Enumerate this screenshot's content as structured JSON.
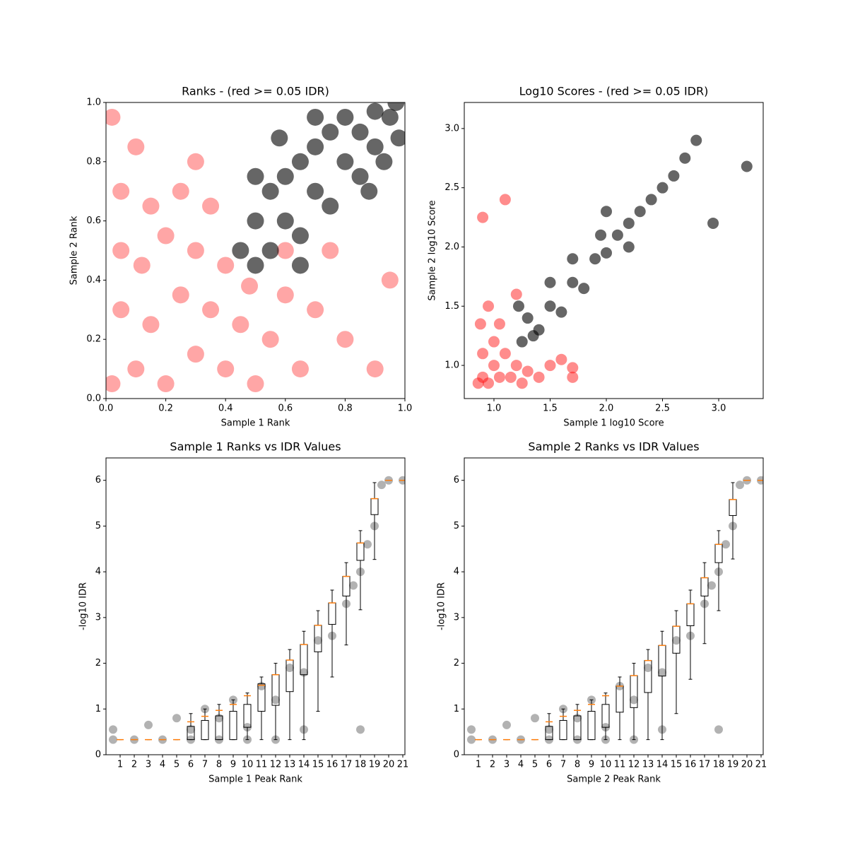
{
  "chart_data": [
    {
      "type": "scatter",
      "title": "Ranks - (red >= 0.05 IDR)",
      "xlabel": "Sample 1 Rank",
      "ylabel": "Sample 2 Rank",
      "xlim": [
        0,
        1
      ],
      "ylim": [
        0,
        1
      ],
      "xticks": [
        {
          "value": 0,
          "label": "0.0"
        },
        0.2,
        0.4,
        0.6,
        0.8,
        {
          "value": 1,
          "label": "1.0"
        }
      ],
      "yticks": [
        {
          "value": 0,
          "label": "0.0"
        },
        0.2,
        0.4,
        0.6,
        0.8,
        {
          "value": 1,
          "label": "1.0"
        }
      ],
      "series": [
        {
          "color": "#ff0000",
          "alpha": 0.35,
          "x": [
            0.02,
            0.1,
            0.2,
            0.3,
            0.05,
            0.15,
            0.25,
            0.35,
            0.4,
            0.45,
            0.5,
            0.55,
            0.6,
            0.05,
            0.12,
            0.2,
            0.3,
            0.4,
            0.05,
            0.15,
            0.25,
            0.1,
            0.3,
            0.65,
            0.7,
            0.8,
            0.9,
            0.95,
            0.75,
            0.02,
            0.35,
            0.48,
            0.6
          ],
          "y": [
            0.05,
            0.1,
            0.05,
            0.15,
            0.3,
            0.25,
            0.35,
            0.3,
            0.1,
            0.25,
            0.05,
            0.2,
            0.35,
            0.5,
            0.45,
            0.55,
            0.5,
            0.45,
            0.7,
            0.65,
            0.7,
            0.85,
            0.8,
            0.1,
            0.3,
            0.2,
            0.1,
            0.4,
            0.5,
            0.95,
            0.65,
            0.38,
            0.5
          ]
        },
        {
          "color": "#000000",
          "alpha": 0.6,
          "x": [
            0.45,
            0.5,
            0.55,
            0.5,
            0.55,
            0.6,
            0.65,
            0.6,
            0.65,
            0.7,
            0.75,
            0.7,
            0.75,
            0.8,
            0.85,
            0.8,
            0.85,
            0.9,
            0.9,
            0.95,
            0.97,
            0.88,
            0.93,
            0.5,
            0.58,
            0.7,
            0.65,
            0.98
          ],
          "y": [
            0.5,
            0.45,
            0.5,
            0.6,
            0.7,
            0.6,
            0.55,
            0.75,
            0.8,
            0.7,
            0.65,
            0.85,
            0.9,
            0.8,
            0.75,
            0.95,
            0.9,
            0.85,
            0.97,
            0.95,
            1.0,
            0.7,
            0.8,
            0.75,
            0.88,
            0.95,
            0.45,
            0.88
          ]
        }
      ]
    },
    {
      "type": "scatter",
      "title": "Log10 Scores - (red >= 0.05 IDR)",
      "xlabel": "Sample 1 log10 Score",
      "ylabel": "Sample 2 log10 Score",
      "xlim": [
        0.736,
        3.396
      ],
      "ylim": [
        0.72,
        3.22
      ],
      "xticks": [
        {
          "value": 1,
          "label": "1.0"
        },
        1.5,
        {
          "value": 2,
          "label": "2.0"
        },
        2.5,
        {
          "value": 3,
          "label": "3.0"
        }
      ],
      "yticks": [
        {
          "value": 1,
          "label": "1.0"
        },
        1.5,
        {
          "value": 2,
          "label": "2.0"
        },
        2.5,
        {
          "value": 3,
          "label": "3.0"
        }
      ],
      "series": [
        {
          "color": "#ff0000",
          "alpha": 0.45,
          "x": [
            0.86,
            0.9,
            0.95,
            1.0,
            1.05,
            0.9,
            1.0,
            0.88,
            1.1,
            1.15,
            1.2,
            1.3,
            1.4,
            1.5,
            1.6,
            0.95,
            1.05,
            1.2,
            1.7,
            0.9,
            1.1,
            1.7,
            1.25
          ],
          "y": [
            0.85,
            0.9,
            0.85,
            1.0,
            0.9,
            1.1,
            1.2,
            1.35,
            1.1,
            0.9,
            1.0,
            0.95,
            0.9,
            1.0,
            1.05,
            1.5,
            1.35,
            1.6,
            0.9,
            2.25,
            2.4,
            0.98,
            0.85
          ]
        },
        {
          "color": "#000000",
          "alpha": 0.6,
          "x": [
            1.25,
            1.3,
            1.4,
            1.5,
            1.6,
            1.5,
            1.7,
            1.8,
            1.7,
            1.9,
            2.0,
            1.95,
            2.1,
            2.2,
            2.3,
            2.4,
            2.5,
            2.6,
            2.7,
            2.8,
            1.22,
            1.35,
            2.0,
            2.2,
            3.25,
            2.95
          ],
          "y": [
            1.2,
            1.4,
            1.3,
            1.5,
            1.45,
            1.7,
            1.7,
            1.65,
            1.9,
            1.9,
            1.95,
            2.1,
            2.1,
            2.2,
            2.3,
            2.4,
            2.5,
            2.6,
            2.75,
            2.9,
            1.5,
            1.25,
            2.3,
            2.0,
            2.68,
            2.2
          ]
        }
      ]
    },
    {
      "type": "box",
      "title": "Sample 1 Ranks vs IDR Values",
      "xlabel": "Sample 1 Peak Rank",
      "ylabel": "-log10 IDR",
      "xlim": [
        0,
        21.15
      ],
      "ylim": [
        0,
        6.49
      ],
      "xticks": [
        1,
        2,
        3,
        4,
        5,
        6,
        7,
        8,
        9,
        10,
        11,
        12,
        13,
        14,
        15,
        16,
        17,
        18,
        19,
        20,
        21
      ],
      "yticks": [
        0,
        1,
        2,
        3,
        4,
        5,
        6
      ],
      "series": [
        {
          "color": "#000000",
          "alpha": 0.3,
          "x": [
            0.5,
            2,
            4,
            6,
            8,
            10,
            12,
            0.5,
            3,
            5,
            7,
            9,
            11,
            13,
            15,
            17,
            18,
            19,
            19.5,
            20,
            21,
            6,
            10,
            14,
            18,
            8,
            12,
            14,
            16,
            17.5,
            18.5
          ],
          "y": [
            0.33,
            0.33,
            0.33,
            0.33,
            0.33,
            0.33,
            0.33,
            0.55,
            0.65,
            0.8,
            1.0,
            1.2,
            1.5,
            1.9,
            2.5,
            3.3,
            4.0,
            5.0,
            5.9,
            6.0,
            6.0,
            0.55,
            0.6,
            0.55,
            0.55,
            0.8,
            1.2,
            1.8,
            2.6,
            3.7,
            4.6
          ]
        }
      ],
      "median_color": "#ff7f0e",
      "boxes": {
        "whislo": [
          0.33,
          0.33,
          0.33,
          0.33,
          0.33,
          0.33,
          0.33,
          0.33,
          0.33,
          0.33,
          0.33,
          0.33,
          0.33,
          0.33,
          0.95,
          1.7,
          2.4,
          3.17,
          4.27,
          6.0,
          6.0
        ],
        "q1": [
          0.33,
          0.33,
          0.33,
          0.33,
          0.33,
          0.33,
          0.33,
          0.33,
          0.33,
          0.6,
          0.95,
          1.08,
          1.38,
          1.75,
          2.25,
          2.85,
          3.47,
          4.25,
          5.25,
          6.0,
          6.0
        ],
        "median": [
          0.33,
          0.33,
          0.33,
          0.33,
          0.33,
          0.72,
          0.84,
          0.97,
          1.1,
          1.29,
          1.52,
          1.75,
          2.07,
          2.41,
          2.83,
          3.32,
          3.9,
          4.63,
          5.6,
          6.0,
          6.0
        ],
        "q3": [
          0.33,
          0.33,
          0.33,
          0.33,
          0.33,
          0.62,
          0.75,
          0.85,
          0.95,
          1.1,
          1.55,
          1.75,
          2.07,
          2.41,
          2.83,
          3.32,
          3.9,
          4.63,
          5.6,
          6.0,
          6.0
        ],
        "whishi": [
          0.33,
          0.33,
          0.33,
          0.33,
          0.33,
          0.9,
          1.0,
          1.1,
          1.2,
          1.35,
          1.7,
          2.0,
          2.3,
          2.7,
          3.15,
          3.6,
          4.2,
          4.9,
          5.95,
          6.0,
          6.0
        ]
      }
    },
    {
      "type": "box",
      "title": "Sample 2 Ranks vs IDR Values",
      "xlabel": "Sample 2 Peak Rank",
      "ylabel": "-log10 IDR",
      "xlim": [
        0,
        21.15
      ],
      "ylim": [
        0,
        6.49
      ],
      "xticks": [
        1,
        2,
        3,
        4,
        5,
        6,
        7,
        8,
        9,
        10,
        11,
        12,
        13,
        14,
        15,
        16,
        17,
        18,
        19,
        20,
        21
      ],
      "yticks": [
        0,
        1,
        2,
        3,
        4,
        5,
        6
      ],
      "series": [
        {
          "color": "#000000",
          "alpha": 0.3,
          "x": [
            0.5,
            2,
            4,
            6,
            8,
            10,
            12,
            0.5,
            3,
            5,
            7,
            9,
            11,
            13,
            15,
            17,
            18,
            19,
            19.5,
            20,
            21,
            6,
            10,
            14,
            18,
            8,
            12,
            14,
            16,
            17.5,
            18.5
          ],
          "y": [
            0.33,
            0.33,
            0.33,
            0.33,
            0.33,
            0.33,
            0.33,
            0.55,
            0.65,
            0.8,
            1.0,
            1.2,
            1.5,
            1.9,
            2.5,
            3.3,
            4.0,
            5.0,
            5.9,
            6.0,
            6.0,
            0.55,
            0.6,
            0.55,
            0.55,
            0.8,
            1.2,
            1.8,
            2.6,
            3.7,
            4.6
          ]
        }
      ],
      "median_color": "#ff7f0e",
      "boxes": {
        "whislo": [
          0.33,
          0.33,
          0.33,
          0.33,
          0.33,
          0.33,
          0.33,
          0.33,
          0.33,
          0.33,
          0.33,
          0.33,
          0.33,
          0.33,
          0.9,
          1.65,
          2.43,
          3.15,
          4.28,
          6.0,
          6.0
        ],
        "q1": [
          0.33,
          0.33,
          0.33,
          0.33,
          0.33,
          0.33,
          0.33,
          0.33,
          0.33,
          0.6,
          0.93,
          1.03,
          1.36,
          1.72,
          2.22,
          2.82,
          3.47,
          4.2,
          5.23,
          6.0,
          6.0
        ],
        "median": [
          0.33,
          0.33,
          0.33,
          0.33,
          0.33,
          0.72,
          0.84,
          0.97,
          1.1,
          1.29,
          1.5,
          1.73,
          2.06,
          2.39,
          2.81,
          3.3,
          3.87,
          4.6,
          5.58,
          6.0,
          6.0
        ],
        "q3": [
          0.33,
          0.33,
          0.33,
          0.33,
          0.33,
          0.62,
          0.75,
          0.85,
          0.95,
          1.1,
          1.5,
          1.73,
          2.06,
          2.39,
          2.81,
          3.3,
          3.87,
          4.6,
          5.58,
          6.0,
          6.0
        ],
        "whishi": [
          0.33,
          0.33,
          0.33,
          0.33,
          0.33,
          0.9,
          1.0,
          1.1,
          1.2,
          1.35,
          1.7,
          2.0,
          2.3,
          2.7,
          3.15,
          3.6,
          4.2,
          4.9,
          5.95,
          6.0,
          6.0
        ]
      }
    }
  ]
}
